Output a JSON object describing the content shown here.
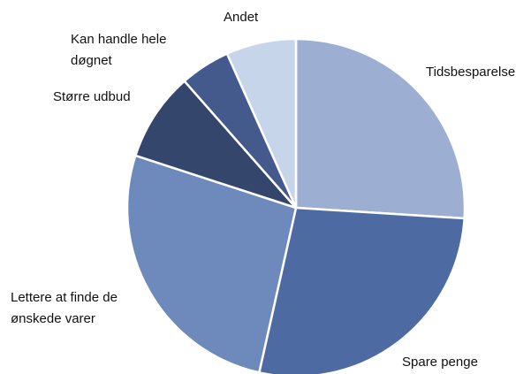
{
  "chart_data": {
    "type": "pie",
    "categories": [
      "Tidsbesparelse",
      "Spare penge",
      "Lettere at finde de\nønskede varer",
      "Større udbud",
      "Kan handle hele\ndøgnet",
      "Andet"
    ],
    "values": [
      26,
      27.5,
      26.5,
      8.5,
      4.8,
      6.7
    ],
    "colors": [
      "#9daed3",
      "#4d6aa3",
      "#6e89bb",
      "#34466b",
      "#445a8c",
      "#c7d5ea"
    ]
  }
}
